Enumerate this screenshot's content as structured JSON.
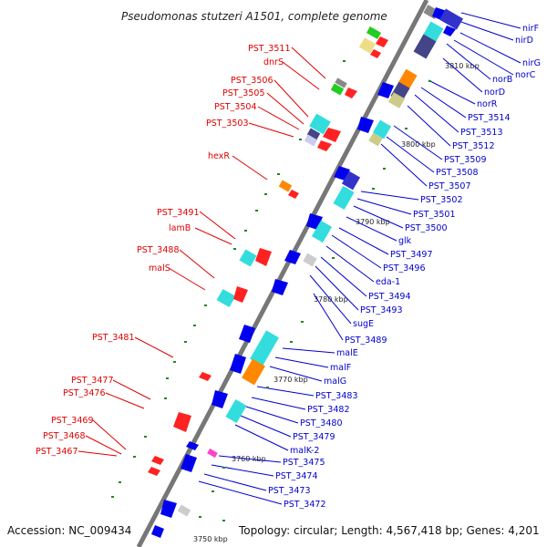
{
  "title": "Pseudomonas stutzeri A1501, complete genome",
  "footer": {
    "accession": "Accession: NC_009434",
    "summary": "Topology: circular; Length: 4,567,418 bp; Genes: 4,201"
  },
  "scale_labels": [
    "3810 kbp",
    "3800 kbp",
    "3790 kbp",
    "3780 kbp",
    "3770 kbp",
    "3760 kbp",
    "3750 kbp"
  ],
  "colors": {
    "left_label": "#dd0000",
    "right_label": "#0000cc",
    "backbone": "#777777",
    "leader_left": "#dd0000",
    "leader_right": "#0000cc"
  },
  "left_labels": [
    "PST_3511",
    "dnrS",
    "PST_3506",
    "PST_3505",
    "PST_3504",
    "PST_3503",
    "hexR",
    "PST_3491",
    "lamB",
    "PST_3488",
    "malS",
    "PST_3481",
    "PST_3477",
    "PST_3476",
    "PST_3469",
    "PST_3468",
    "PST_3467"
  ],
  "right_labels": [
    "nirF",
    "nirD",
    "nirG",
    "norC",
    "norB",
    "norD",
    "norR",
    "PST_3514",
    "PST_3513",
    "PST_3512",
    "PST_3509",
    "PST_3508",
    "PST_3507",
    "PST_3502",
    "PST_3501",
    "PST_3500",
    "glk",
    "PST_3497",
    "PST_3496",
    "eda-1",
    "PST_3494",
    "PST_3493",
    "sugE",
    "PST_3489",
    "malE",
    "malF",
    "malG",
    "PST_3483",
    "PST_3482",
    "PST_3480",
    "PST_3479",
    "malK-2",
    "PST_3475",
    "PST_3474",
    "PST_3473",
    "PST_3472"
  ]
}
